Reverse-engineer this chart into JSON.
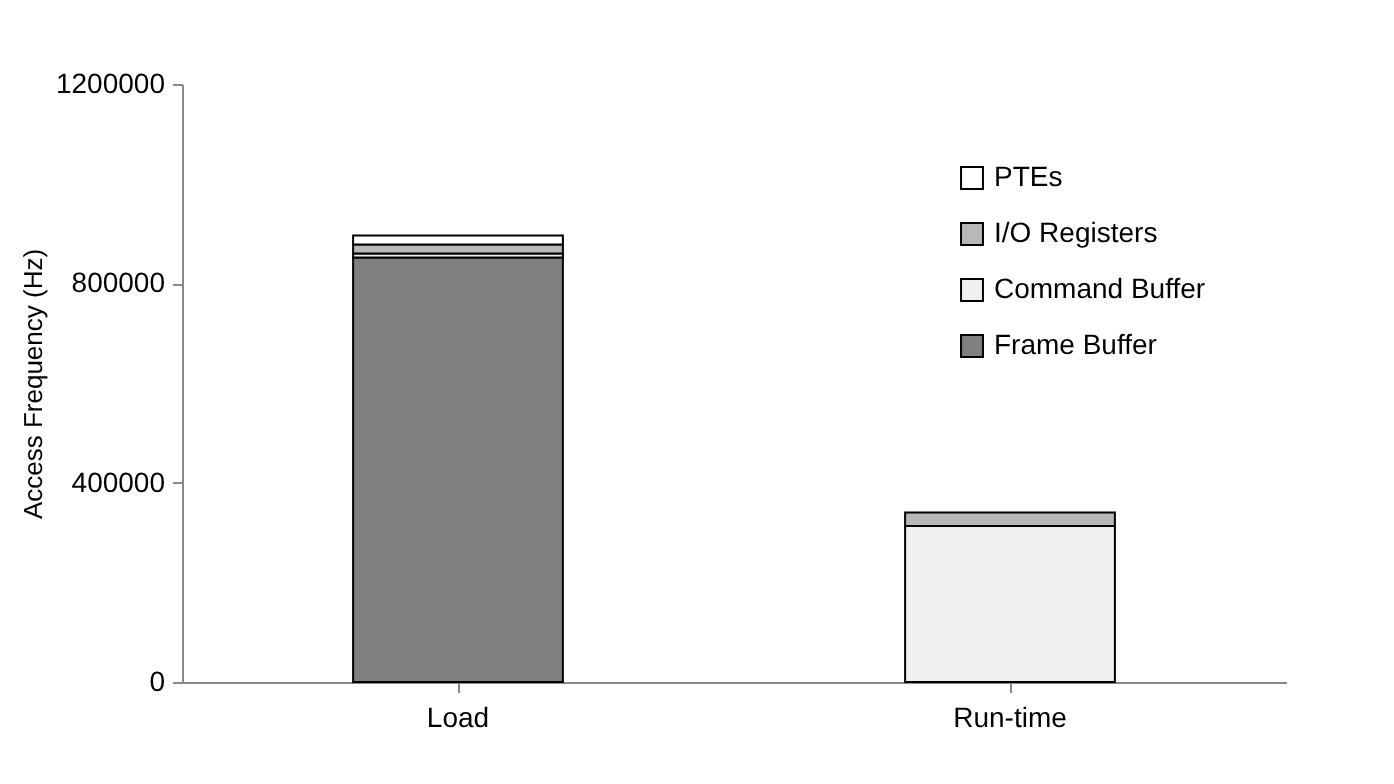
{
  "chart_data": {
    "type": "bar",
    "stacked": true,
    "ylabel": "Access Frequency (Hz)",
    "categories": [
      "Load",
      "Run-time"
    ],
    "series": [
      {
        "name": "Frame Buffer",
        "color": "#808080",
        "values": [
          852000,
          0
        ]
      },
      {
        "name": "Command Buffer",
        "color": "#f0f0f0",
        "values": [
          8000,
          313000
        ]
      },
      {
        "name": "I/O Registers",
        "color": "#b8b8b8",
        "values": [
          18000,
          27000
        ]
      },
      {
        "name": "PTEs",
        "color": "#ffffff",
        "values": [
          18000,
          0
        ]
      }
    ],
    "ylim": [
      0,
      1200000
    ],
    "yticks": [
      0,
      400000,
      800000,
      1200000
    ],
    "grid": false,
    "legend": "top right"
  }
}
